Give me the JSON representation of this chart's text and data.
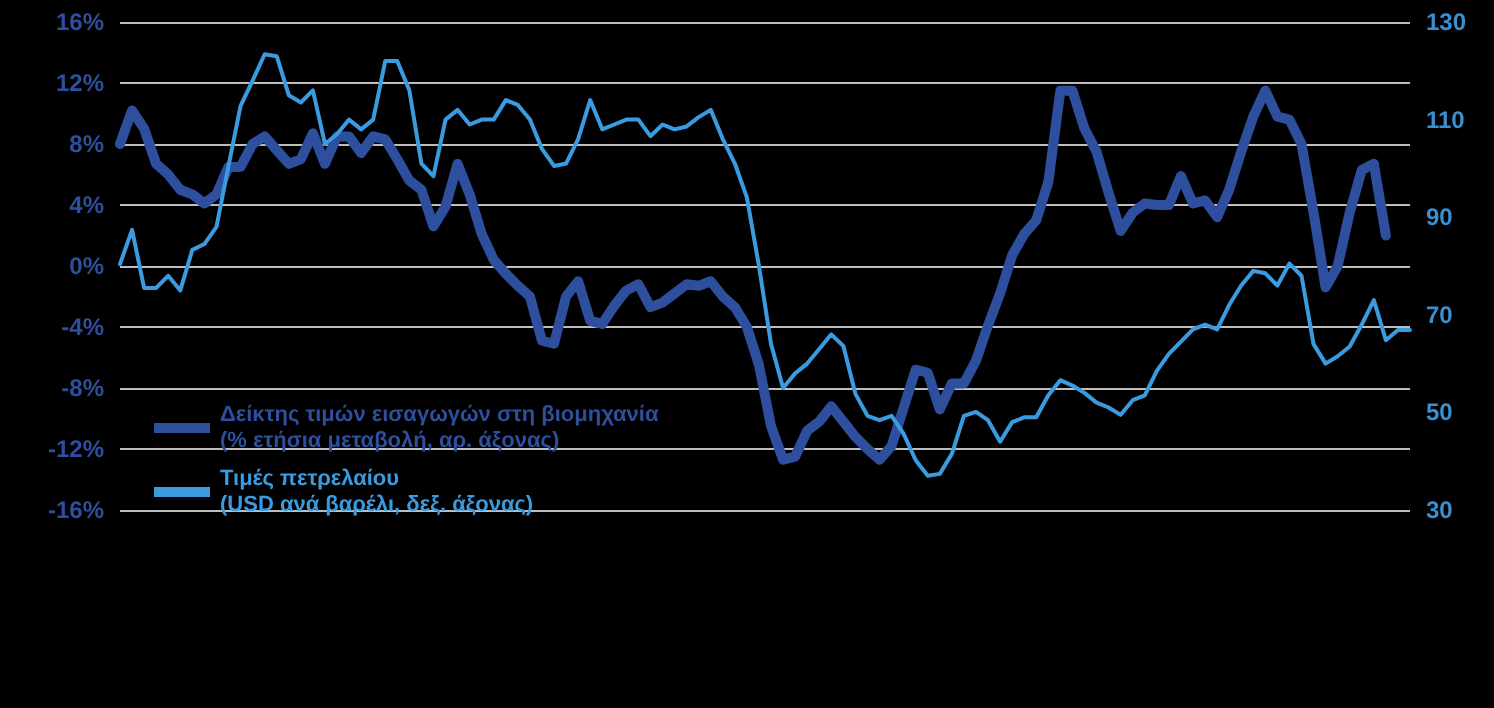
{
  "chart_data": {
    "type": "line",
    "categories": [
      null,
      null,
      null,
      null,
      null,
      null,
      null,
      null,
      null,
      null,
      null,
      null,
      null,
      null,
      null,
      null,
      null,
      null,
      null,
      null,
      null,
      null,
      null,
      null,
      null,
      null,
      null,
      null,
      null,
      null,
      null,
      null,
      null,
      null,
      null,
      null,
      null,
      null,
      null,
      null,
      null,
      null,
      null,
      null,
      null,
      null,
      null,
      null,
      null,
      null,
      null,
      null,
      null,
      null,
      null,
      null,
      null,
      null,
      null,
      null,
      null,
      null,
      null,
      null,
      null,
      null,
      null,
      null,
      null,
      null,
      null,
      null,
      null,
      null,
      null,
      null,
      null,
      null,
      null,
      null,
      null,
      null,
      null,
      null,
      null,
      null,
      null,
      null,
      null,
      null,
      null,
      null,
      null,
      null,
      null,
      null,
      null,
      null,
      null,
      null,
      null,
      null,
      null,
      null,
      null,
      null,
      null,
      null
    ],
    "series": [
      {
        "name": "Δείκτης τιμών εισαγωγών στη βιομηχανία\n(% ετήσια μεταβολή, αρ. άξονας)",
        "color": "#2e4f9e",
        "axis": "y",
        "values": [
          8.0,
          10.2,
          9.0,
          6.7,
          6.0,
          5.0,
          4.7,
          4.1,
          4.7,
          6.5,
          6.5,
          8.0,
          8.5,
          7.6,
          6.7,
          7.0,
          8.7,
          6.7,
          8.5,
          8.5,
          7.4,
          8.5,
          8.3,
          7.0,
          5.6,
          5.0,
          2.6,
          3.9,
          6.7,
          4.7,
          2.1,
          0.4,
          -0.5,
          -1.3,
          -2.0,
          -4.9,
          -5.1,
          -2.0,
          -1.0,
          -3.6,
          -3.8,
          -2.6,
          -1.6,
          -1.2,
          -2.7,
          -2.4,
          -1.8,
          -1.2,
          -1.3,
          -1.0,
          -2.0,
          -2.7,
          -4.0,
          -6.5,
          -10.5,
          -12.7,
          -12.5,
          -10.8,
          -10.2,
          -9.2,
          -10.2,
          -11.2,
          -12.0,
          -12.7,
          -11.8,
          -9.3,
          -6.8,
          -7.0,
          -9.4,
          -7.7,
          -7.7,
          -6.2,
          -3.9,
          -1.8,
          0.7,
          2.1,
          3.0,
          5.5,
          11.5,
          11.5,
          9.0,
          7.5,
          4.8,
          2.3,
          3.5,
          4.1,
          4.0,
          4.0,
          5.9,
          4.1,
          4.3,
          3.2,
          5.0,
          7.5,
          9.8,
          11.5,
          9.8,
          9.6,
          8.0,
          3.5,
          -1.4,
          0.0,
          3.5,
          6.3,
          6.7,
          2.0,
          null,
          null
        ]
      },
      {
        "name": "Τιμές πετρελαίου\n(USD ανά βαρέλι, δεξ. άξονας)",
        "color": "#3a9be0",
        "axis": "y2",
        "values": [
          80.4,
          87.4,
          75.5,
          75.5,
          78,
          75,
          83.3,
          84.5,
          88,
          100.5,
          112.8,
          118,
          123.4,
          123,
          115,
          113.5,
          116,
          105,
          107,
          110,
          108,
          110,
          122,
          122,
          116,
          101,
          98.4,
          110,
          112,
          109,
          110,
          110,
          114,
          113,
          110,
          104,
          100.5,
          101,
          106,
          114,
          108,
          109,
          110,
          110,
          106.6,
          109,
          108,
          108.6,
          110.5,
          112,
          106,
          101,
          94,
          80,
          64,
          55,
          58,
          60,
          63,
          66,
          63.6,
          53.8,
          49.3,
          48.4,
          49.3,
          45.6,
          40.2,
          37,
          37.4,
          41.5,
          49.3,
          50.1,
          48.4,
          44,
          48,
          49,
          49,
          53.5,
          56.6,
          55.5,
          54,
          52,
          51,
          49.5,
          52.5,
          53.5,
          58.5,
          62,
          64.5,
          67,
          68,
          67,
          72,
          76,
          79,
          78.5,
          76,
          80.5,
          78,
          64,
          60,
          61.5,
          63.5,
          68,
          73,
          64.8,
          66.9,
          66.9
        ]
      }
    ],
    "ylim": [
      -16,
      16
    ],
    "yticks": [
      {
        "value": -16,
        "label": "-16%"
      },
      {
        "value": -12,
        "label": "-12%"
      },
      {
        "value": -8,
        "label": "-8%"
      },
      {
        "value": -4,
        "label": "-4%"
      },
      {
        "value": 0,
        "label": "0%"
      },
      {
        "value": 4,
        "label": "4%"
      },
      {
        "value": 8,
        "label": "8%"
      },
      {
        "value": 12,
        "label": "12%"
      },
      {
        "value": 16,
        "label": "16%"
      }
    ],
    "y2lim": [
      30,
      130
    ],
    "y2ticks": [
      30,
      50,
      70,
      90,
      110,
      130
    ],
    "tick_labels": "y",
    "grid": "y",
    "legend": "bottom left",
    "line_style": "solid"
  }
}
